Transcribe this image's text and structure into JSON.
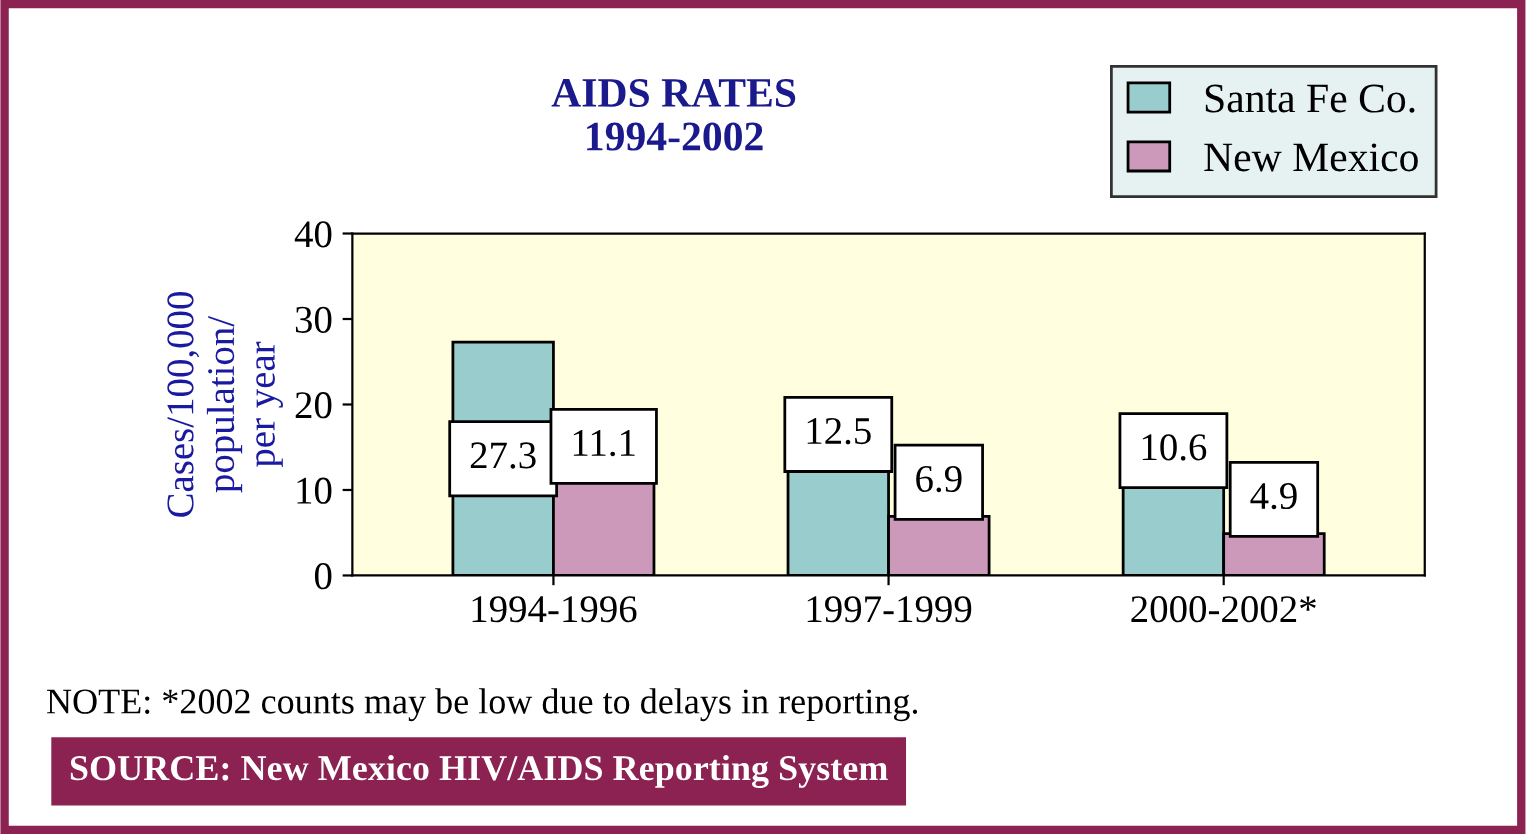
{
  "chart_data": {
    "type": "bar",
    "title": "AIDS RATES\n1994-2002",
    "categories": [
      "1994-1996",
      "1997-1999",
      "2000-2002*"
    ],
    "series": [
      {
        "name": "Santa Fe Co.",
        "color": "#99cccc",
        "values": [
          27.3,
          12.5,
          10.6
        ]
      },
      {
        "name": "New Mexico",
        "color": "#cc99bb",
        "values": [
          11.1,
          6.9,
          4.9
        ]
      }
    ],
    "ylabel": "Cases/100,000\npopulation/\nper year",
    "ylim": [
      0,
      40
    ],
    "yticks": [
      0,
      10,
      20,
      30,
      40
    ],
    "grid": false,
    "legend": "top right",
    "data_labels": true,
    "annotations": [
      "NOTE: *2002 counts may be low due to delays in reporting.",
      "SOURCE: New Mexico HIV/AIDS Reporting System"
    ]
  }
}
